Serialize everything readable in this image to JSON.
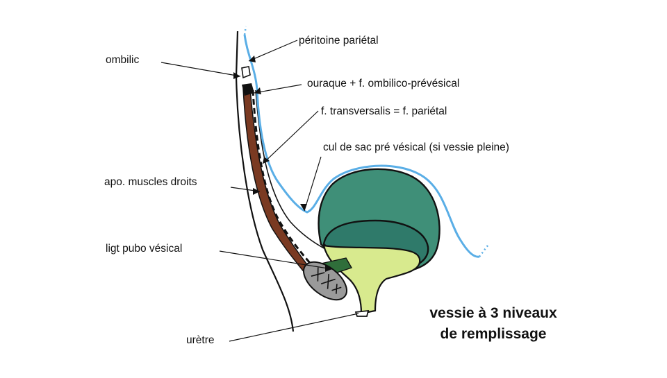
{
  "labels": {
    "peritoine_parietal": "péritoine pariétal",
    "ombilic": "ombilic",
    "ouraque": "ouraque + f. ombilico-prévésical",
    "f_transversalis": "f. transversalis = f. pariétal",
    "cul_de_sac": "cul de sac pré vésical (si vessie pleine)",
    "apo_muscles": "apo. muscles droits",
    "ligt_pubo": "ligt pubo vésical",
    "uretre": "urètre"
  },
  "title": {
    "line1": "vessie à 3 niveaux",
    "line2": "de remplissage"
  },
  "colors": {
    "peritoneum": "#5aaee6",
    "muscle": "#7a3a22",
    "bladder_full": "#3f8f78",
    "bladder_mid": "#2f7a6a",
    "bladder_empty": "#d8ea8e",
    "ligament": "#2f6e3a",
    "pubis": "#9a9a9a",
    "outline": "#111111"
  }
}
